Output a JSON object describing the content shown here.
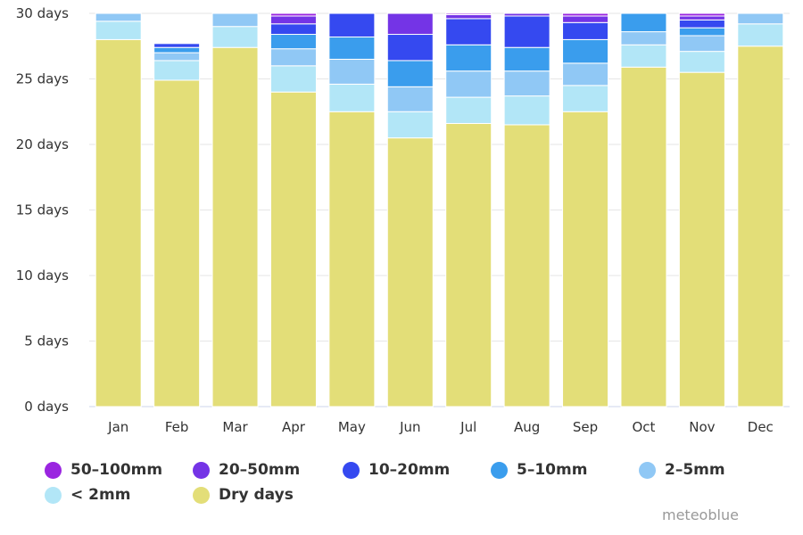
{
  "chart_data": {
    "type": "bar",
    "stacked": true,
    "categories": [
      "Jan",
      "Feb",
      "Mar",
      "Apr",
      "May",
      "Jun",
      "Jul",
      "Aug",
      "Sep",
      "Oct",
      "Nov",
      "Dec"
    ],
    "ylim": [
      0,
      30
    ],
    "yticks": [
      0,
      5,
      10,
      15,
      20,
      25,
      30
    ],
    "ytick_labels": [
      "0 days",
      "5 days",
      "10 days",
      "15 days",
      "20 days",
      "25 days",
      "30 days"
    ],
    "grid": true,
    "legend_position": "bottom",
    "series": [
      {
        "name": "Dry days",
        "color": "#e3de78",
        "values": [
          28.0,
          24.9,
          27.4,
          24.0,
          22.5,
          20.5,
          21.6,
          21.5,
          22.5,
          25.9,
          25.5,
          27.5
        ]
      },
      {
        "name": "< 2mm",
        "color": "#b2e6f7",
        "values": [
          1.4,
          1.5,
          1.6,
          2.0,
          2.1,
          2.0,
          2.0,
          2.2,
          2.0,
          1.7,
          1.6,
          1.7
        ]
      },
      {
        "name": "2-5mm",
        "color": "#90c8f5",
        "values": [
          0.6,
          0.6,
          1.0,
          1.3,
          1.9,
          1.9,
          2.0,
          1.9,
          1.7,
          1.0,
          1.2,
          0.8
        ]
      },
      {
        "name": "5-10mm",
        "color": "#3a9ded",
        "values": [
          0.0,
          0.4,
          0.0,
          1.1,
          1.7,
          2.0,
          2.0,
          1.8,
          1.8,
          1.4,
          0.6,
          0.0
        ]
      },
      {
        "name": "10-20mm",
        "color": "#3549f0",
        "values": [
          0.0,
          0.3,
          0.0,
          0.8,
          1.8,
          2.0,
          2.0,
          2.4,
          1.3,
          0.0,
          0.6,
          0.0
        ]
      },
      {
        "name": "20-50mm",
        "color": "#7434e6",
        "values": [
          0.0,
          0.0,
          0.0,
          0.6,
          0.0,
          1.6,
          0.3,
          0.2,
          0.5,
          0.0,
          0.3,
          0.0
        ]
      },
      {
        "name": "50-100mm",
        "color": "#9a25e0",
        "values": [
          0.0,
          0.0,
          0.0,
          0.2,
          0.0,
          0.0,
          0.1,
          0.0,
          0.2,
          0.0,
          0.2,
          0.0
        ]
      }
    ]
  },
  "legend": [
    {
      "label": "50–100mm",
      "color": "#9a25e0"
    },
    {
      "label": "20–50mm",
      "color": "#7434e6"
    },
    {
      "label": "10–20mm",
      "color": "#3549f0"
    },
    {
      "label": "5–10mm",
      "color": "#3a9ded"
    },
    {
      "label": "2–5mm",
      "color": "#90c8f5"
    },
    {
      "label": "< 2mm",
      "color": "#b2e6f7"
    },
    {
      "label": "Dry days",
      "color": "#e3de78"
    }
  ],
  "credit": "meteoblue"
}
